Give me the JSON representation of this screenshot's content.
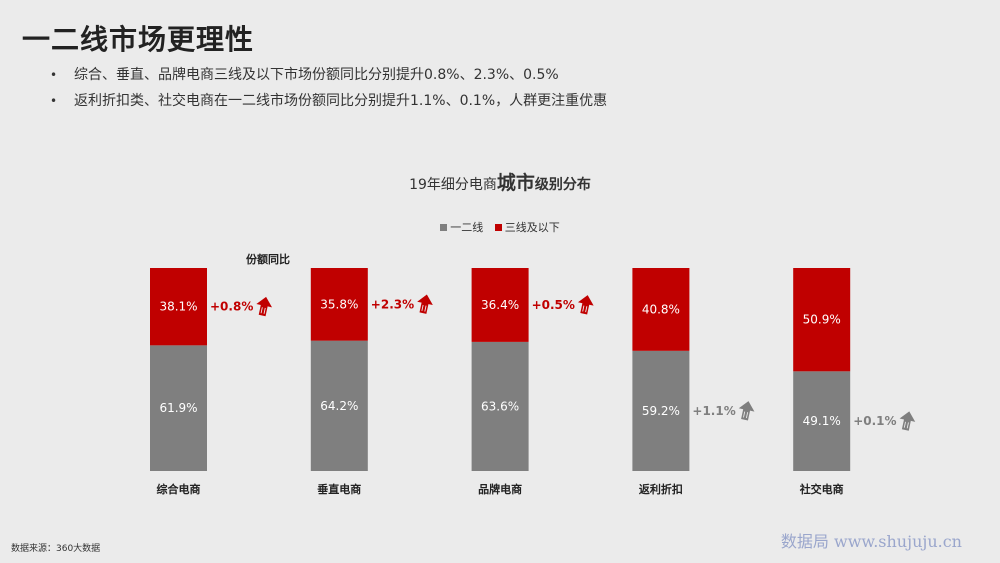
{
  "slide": {
    "title": "一二线市场更理性",
    "bullets": [
      "综合、垂直、品牌电商三线及以下市场份额同比分别提升0.8%、2.3%、0.5%",
      "返利折扣类、社交电商在一二线市场份额同比分别提升1.1%、0.1%，人群更注重优惠"
    ],
    "source": "数据来源：360大数据",
    "watermark": "数据局  www.shujuju.cn"
  },
  "chart_data": {
    "type": "bar",
    "stacked": true,
    "title_parts": [
      "19年细分电商",
      "城市",
      "级别分布"
    ],
    "categories": [
      "综合电商",
      "垂直电商",
      "品牌电商",
      "返利折扣",
      "社交电商"
    ],
    "series": [
      {
        "name": "一二线",
        "color": "#7f7f7f",
        "values": [
          61.9,
          64.2,
          63.6,
          59.2,
          49.1
        ],
        "labels": [
          "61.9%",
          "64.2%",
          "63.6%",
          "59.2%",
          "49.1%"
        ]
      },
      {
        "name": "三线及以下",
        "color": "#c00000",
        "values": [
          38.1,
          35.8,
          36.4,
          40.8,
          50.9
        ],
        "labels": [
          "38.1%",
          "35.8%",
          "36.4%",
          "40.8%",
          "50.9%"
        ]
      }
    ],
    "annotation_title": "份额同比",
    "annotations": [
      {
        "text": "+0.8%",
        "series": "三线及以下",
        "color": "#c00000"
      },
      {
        "text": "+2.3%",
        "series": "三线及以下",
        "color": "#c00000"
      },
      {
        "text": "+0.5%",
        "series": "三线及以下",
        "color": "#c00000"
      },
      {
        "text": "+1.1%",
        "series": "一二线",
        "color": "#7f7f7f"
      },
      {
        "text": "+0.1%",
        "series": "一二线",
        "color": "#7f7f7f"
      }
    ],
    "ylim": [
      0,
      100
    ],
    "legend_position": "top-center",
    "grid": false,
    "xlabel": "",
    "ylabel": ""
  }
}
